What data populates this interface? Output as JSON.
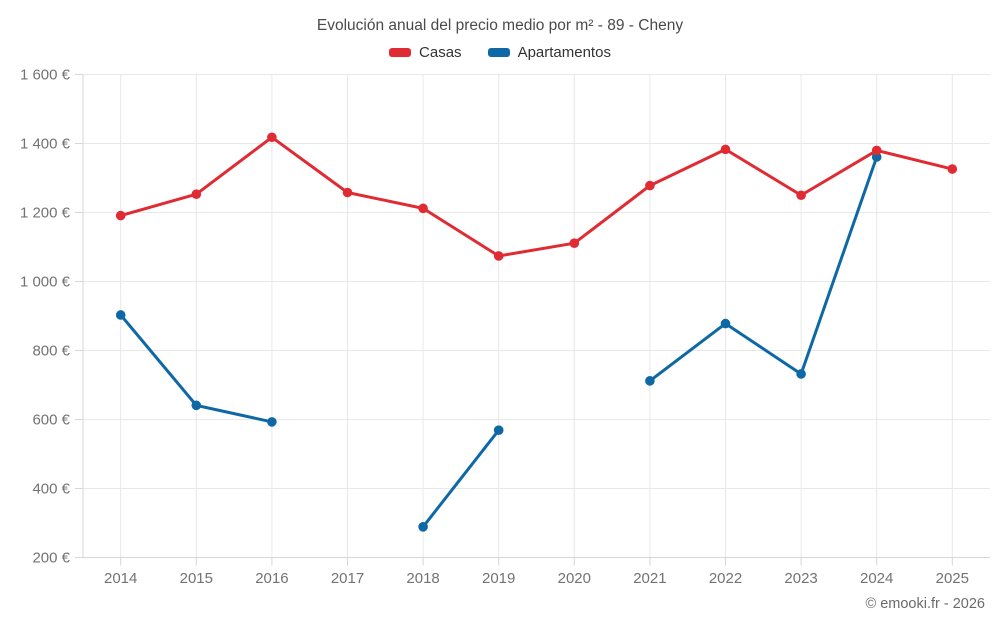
{
  "title": "Evolución anual del precio medio por m² - 89 - Cheny",
  "footer_credit": "© emooki.fr - 2026",
  "chart_data": {
    "type": "line",
    "title": "Evolución anual del precio medio por m² - 89 - Cheny",
    "x": [
      "2014",
      "2015",
      "2016",
      "2017",
      "2018",
      "2019",
      "2020",
      "2021",
      "2022",
      "2023",
      "2024",
      "2025"
    ],
    "series": [
      {
        "name": "Casas",
        "color": "#e02b33",
        "values": [
          1191,
          1253,
          1418,
          1258,
          1212,
          1074,
          1111,
          1278,
          1383,
          1250,
          1380,
          1326
        ]
      },
      {
        "name": "Apartamentos",
        "color": "#0f68a6",
        "values": [
          903,
          641,
          593,
          null,
          289,
          569,
          null,
          712,
          878,
          732,
          1361,
          null
        ]
      }
    ],
    "ylim": [
      200,
      1600
    ],
    "ytick_step": 200,
    "y_suffix": " €",
    "grid": true,
    "legend_position": "top",
    "gridline_color": "#e8e8e8",
    "axis_line_color": "#d6d6d6",
    "label_color": "#737373"
  }
}
